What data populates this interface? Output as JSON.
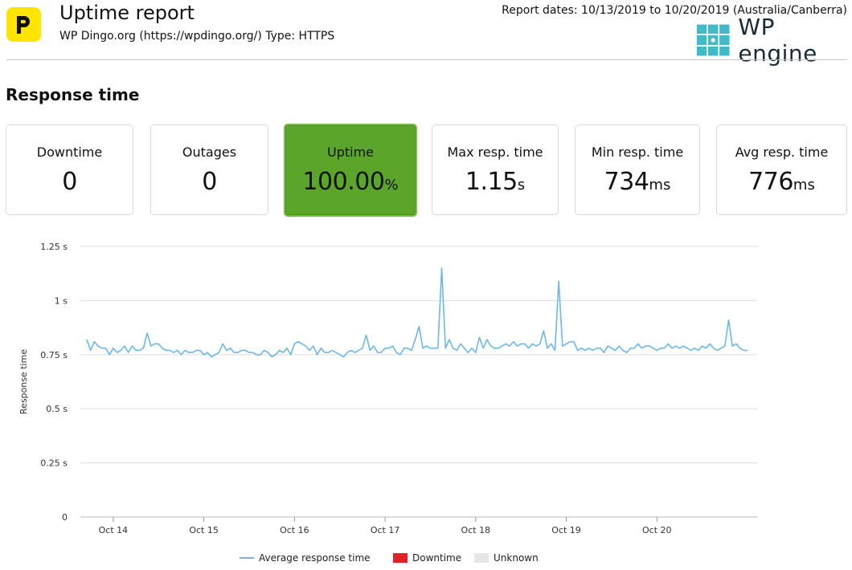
{
  "header": {
    "title": "Uptime report",
    "subtitle": "WP Dingo.org (https://wpdingo.org/) Type: HTTPS",
    "dates": "Report dates: 10/13/2019 to 10/20/2019 (Australia/Canberra)",
    "logo_letter": "P",
    "partner_brand": "WP engine"
  },
  "section_title": "Response time",
  "cards": {
    "downtime": {
      "label": "Downtime",
      "value": "0",
      "unit": ""
    },
    "outages": {
      "label": "Outages",
      "value": "0",
      "unit": ""
    },
    "uptime": {
      "label": "Uptime",
      "value": "100.00",
      "unit": "%"
    },
    "max": {
      "label": "Max resp. time",
      "value": "1.15",
      "unit": "s"
    },
    "min": {
      "label": "Min resp. time",
      "value": "734",
      "unit": "ms"
    },
    "avg": {
      "label": "Avg resp. time",
      "value": "776",
      "unit": "ms"
    }
  },
  "colors": {
    "uptime_green": "#5aa52a",
    "line": "#6cb8ee",
    "downtime": "#e02424",
    "unknown": "#e6e6e6",
    "grid": "#dddddd",
    "brand_yellow": "#ffe400",
    "brand_teal": "#40bac8"
  },
  "chart_data": {
    "type": "line",
    "title": "",
    "xlabel": "",
    "ylabel": "Response time",
    "ylim": [
      0,
      1.25
    ],
    "yticks": [
      0,
      0.25,
      0.5,
      0.75,
      1,
      1.25
    ],
    "ytick_labels": [
      "0",
      "0.25 s",
      "0.5 s",
      "0.75 s",
      "1 s",
      "1.25 s"
    ],
    "x_start": "Oct 13 17:00",
    "x_end": "Oct 20 22:00",
    "x_step_hours": 1,
    "xtick_labels": [
      "Oct 14",
      "Oct 15",
      "Oct 16",
      "Oct 17",
      "Oct 18",
      "Oct 19",
      "Oct 20"
    ],
    "grid": true,
    "legend": "bottom",
    "legend_items": [
      {
        "label": "Average response time",
        "kind": "line",
        "color": "#6cb8ee"
      },
      {
        "label": "Downtime",
        "kind": "box",
        "color": "#e02424"
      },
      {
        "label": "Unknown",
        "kind": "box",
        "color": "#e6e6e6"
      }
    ],
    "series": [
      {
        "name": "Average response time",
        "values": [
          0.82,
          0.77,
          0.81,
          0.79,
          0.78,
          0.78,
          0.75,
          0.78,
          0.76,
          0.77,
          0.79,
          0.76,
          0.79,
          0.77,
          0.77,
          0.78,
          0.85,
          0.79,
          0.8,
          0.8,
          0.78,
          0.77,
          0.77,
          0.76,
          0.77,
          0.75,
          0.77,
          0.76,
          0.76,
          0.77,
          0.77,
          0.75,
          0.76,
          0.74,
          0.75,
          0.76,
          0.8,
          0.77,
          0.78,
          0.76,
          0.76,
          0.77,
          0.77,
          0.76,
          0.76,
          0.75,
          0.75,
          0.77,
          0.76,
          0.74,
          0.75,
          0.77,
          0.76,
          0.78,
          0.75,
          0.8,
          0.81,
          0.8,
          0.79,
          0.77,
          0.79,
          0.75,
          0.78,
          0.76,
          0.76,
          0.77,
          0.76,
          0.75,
          0.74,
          0.76,
          0.77,
          0.76,
          0.77,
          0.78,
          0.84,
          0.77,
          0.79,
          0.76,
          0.76,
          0.78,
          0.78,
          0.79,
          0.76,
          0.75,
          0.78,
          0.78,
          0.77,
          0.82,
          0.88,
          0.78,
          0.79,
          0.78,
          0.78,
          0.78,
          1.15,
          0.78,
          0.82,
          0.78,
          0.77,
          0.8,
          0.78,
          0.76,
          0.78,
          0.76,
          0.83,
          0.78,
          0.82,
          0.79,
          0.78,
          0.78,
          0.79,
          0.8,
          0.79,
          0.81,
          0.79,
          0.8,
          0.8,
          0.78,
          0.8,
          0.79,
          0.8,
          0.86,
          0.78,
          0.8,
          0.77,
          1.09,
          0.79,
          0.8,
          0.81,
          0.81,
          0.77,
          0.78,
          0.77,
          0.78,
          0.77,
          0.78,
          0.78,
          0.76,
          0.79,
          0.78,
          0.77,
          0.79,
          0.77,
          0.76,
          0.78,
          0.78,
          0.8,
          0.78,
          0.79,
          0.79,
          0.78,
          0.77,
          0.78,
          0.78,
          0.8,
          0.78,
          0.79,
          0.78,
          0.79,
          0.78,
          0.77,
          0.78,
          0.77,
          0.79,
          0.78,
          0.8,
          0.78,
          0.77,
          0.78,
          0.79,
          0.91,
          0.79,
          0.8,
          0.78,
          0.77,
          0.77
        ]
      }
    ]
  }
}
